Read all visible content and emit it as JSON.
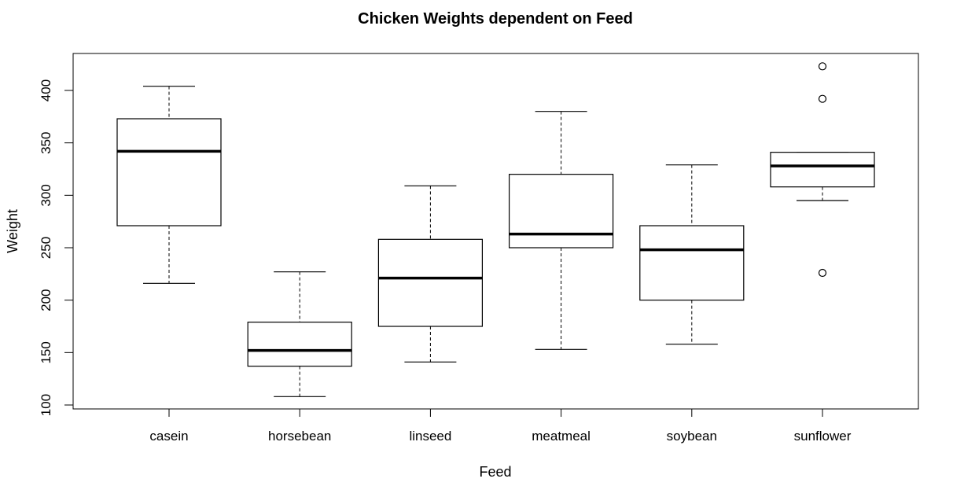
{
  "chart_data": {
    "type": "boxplot",
    "title": "Chicken Weights dependent on Feed",
    "xlabel": "Feed",
    "ylabel": "Weight",
    "ylim": [
      100,
      425
    ],
    "yticks": [
      100,
      150,
      200,
      250,
      300,
      350,
      400
    ],
    "categories": [
      "casein",
      "horsebean",
      "linseed",
      "meatmeal",
      "soybean",
      "sunflower"
    ],
    "boxes": [
      {
        "category": "casein",
        "whisker_low": 216,
        "q1": 271,
        "median": 342,
        "q3": 373,
        "whisker_high": 404,
        "outliers": []
      },
      {
        "category": "horsebean",
        "whisker_low": 108,
        "q1": 137,
        "median": 152,
        "q3": 179,
        "whisker_high": 227,
        "outliers": []
      },
      {
        "category": "linseed",
        "whisker_low": 141,
        "q1": 175,
        "median": 221,
        "q3": 258,
        "whisker_high": 309,
        "outliers": []
      },
      {
        "category": "meatmeal",
        "whisker_low": 153,
        "q1": 250,
        "median": 263,
        "q3": 320,
        "whisker_high": 380,
        "outliers": []
      },
      {
        "category": "soybean",
        "whisker_low": 158,
        "q1": 200,
        "median": 248,
        "q3": 271,
        "whisker_high": 329,
        "outliers": []
      },
      {
        "category": "sunflower",
        "whisker_low": 295,
        "q1": 308,
        "median": 328,
        "q3": 341,
        "whisker_high": 341,
        "outliers": [
          226,
          392,
          423
        ]
      }
    ],
    "grid": false,
    "legend": "none",
    "colors": {
      "line": "#000000",
      "box_fill": "#ffffff"
    }
  }
}
